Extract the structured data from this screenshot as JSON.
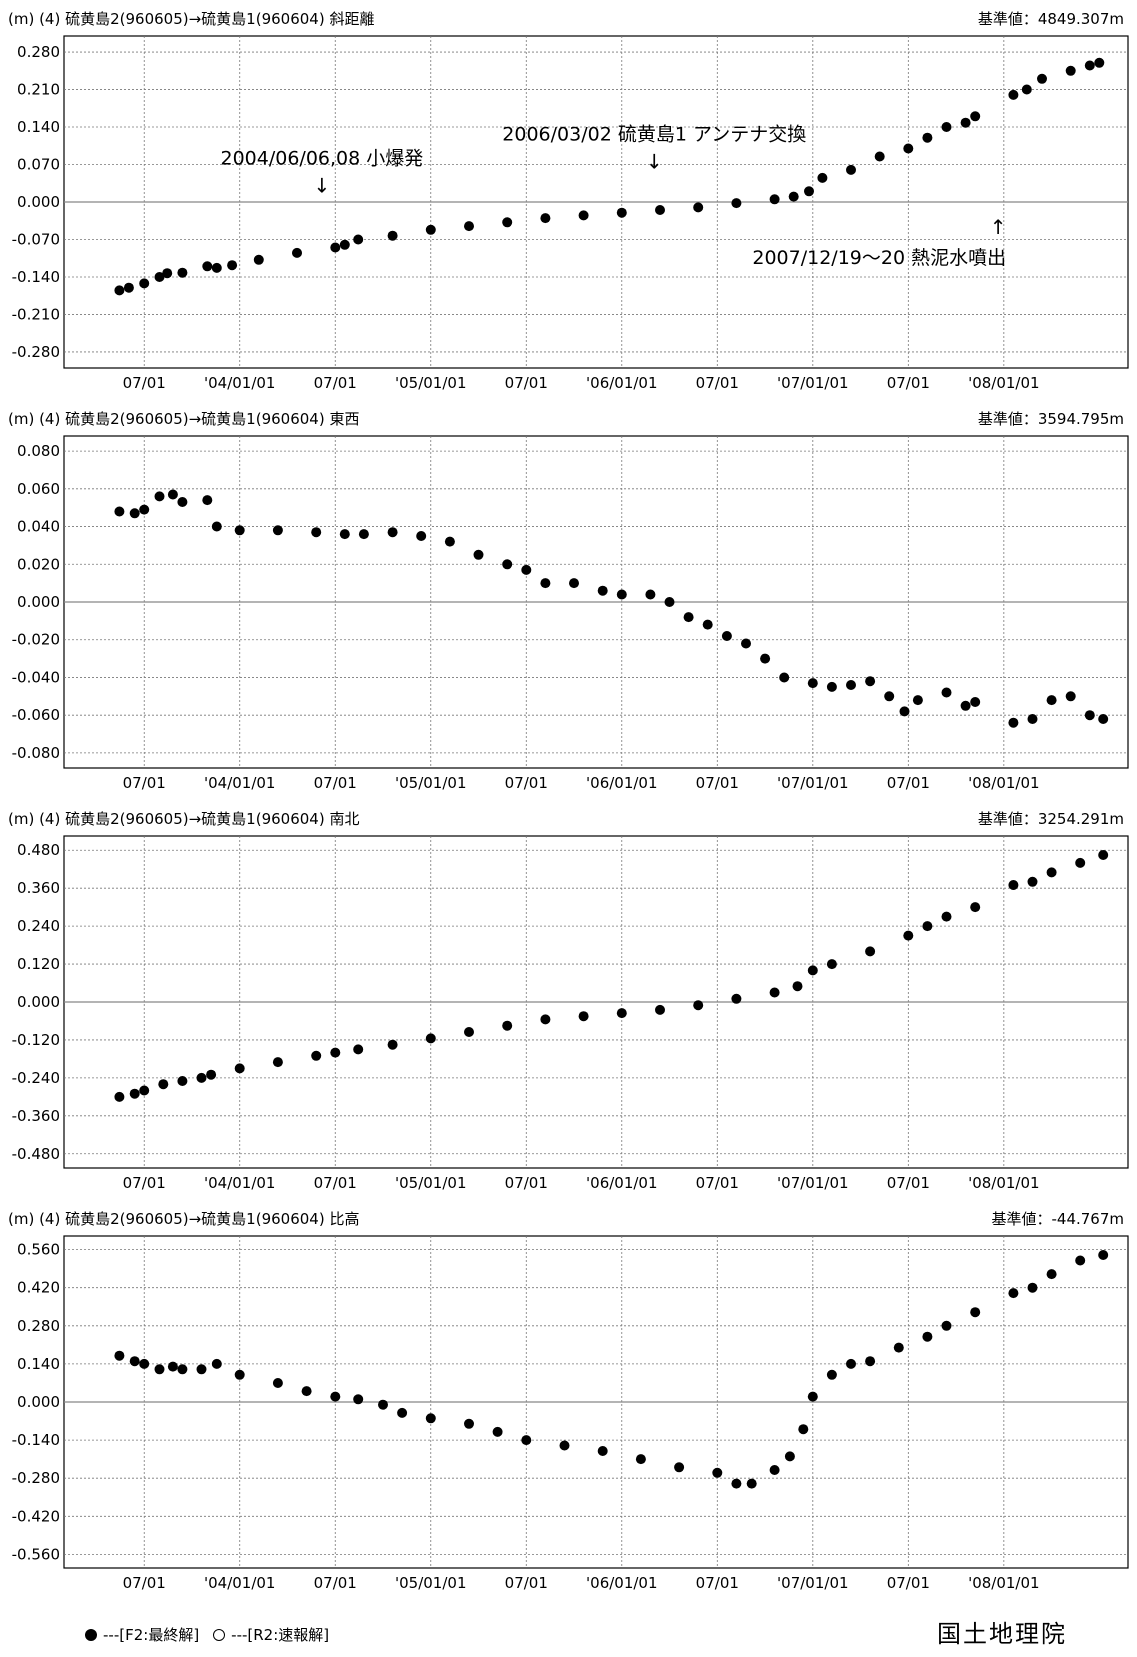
{
  "chart_data": [
    {
      "type": "scatter",
      "header_left": "(m)  (4) 硫黄島2(960605)→硫黄島1(960604) 斜距離",
      "header_right": "基準値：4849.307m",
      "yticks": [
        "0.280",
        "0.210",
        "0.140",
        "0.070",
        "0.000",
        "-0.070",
        "-0.140",
        "-0.210",
        "-0.280"
      ],
      "ylim": [
        -0.31,
        0.31
      ],
      "xticks": [
        "07/01",
        "'04/01/01",
        "07/01",
        "'05/01/01",
        "07/01",
        "'06/01/01",
        "07/01",
        "'07/01/01",
        "07/01",
        "'08/01/01"
      ],
      "series": [
        {
          "points": [
            [
              2003.37,
              -0.165
            ],
            [
              2003.42,
              -0.16
            ],
            [
              2003.5,
              -0.152
            ],
            [
              2003.58,
              -0.14
            ],
            [
              2003.62,
              -0.133
            ],
            [
              2003.7,
              -0.132
            ],
            [
              2003.83,
              -0.12
            ],
            [
              2003.88,
              -0.123
            ],
            [
              2003.96,
              -0.118
            ],
            [
              2004.1,
              -0.108
            ],
            [
              2004.3,
              -0.095
            ],
            [
              2004.5,
              -0.085
            ],
            [
              2004.55,
              -0.08
            ],
            [
              2004.62,
              -0.07
            ],
            [
              2004.8,
              -0.063
            ],
            [
              2005.0,
              -0.052
            ],
            [
              2005.2,
              -0.045
            ],
            [
              2005.4,
              -0.038
            ],
            [
              2005.6,
              -0.03
            ],
            [
              2005.8,
              -0.025
            ],
            [
              2006.0,
              -0.02
            ],
            [
              2006.2,
              -0.015
            ],
            [
              2006.4,
              -0.01
            ],
            [
              2006.6,
              -0.002
            ],
            [
              2006.8,
              0.005
            ],
            [
              2006.9,
              0.01
            ],
            [
              2006.98,
              0.02
            ],
            [
              2007.05,
              0.045
            ],
            [
              2007.2,
              0.06
            ],
            [
              2007.35,
              0.085
            ],
            [
              2007.5,
              0.1
            ],
            [
              2007.6,
              0.12
            ],
            [
              2007.7,
              0.14
            ],
            [
              2007.8,
              0.148
            ],
            [
              2007.85,
              0.16
            ],
            [
              2008.05,
              0.2
            ],
            [
              2008.12,
              0.21
            ],
            [
              2008.2,
              0.23
            ],
            [
              2008.35,
              0.245
            ],
            [
              2008.45,
              0.255
            ],
            [
              2008.5,
              0.26
            ]
          ]
        }
      ],
      "annotations": [
        {
          "text": "2004/06/06,08  小爆発",
          "arrow": "↓",
          "x": 2004.43,
          "y": 0.07
        },
        {
          "text": "2006/03/02  硫黄島1  アンテナ交換",
          "arrow": "↓",
          "x": 2006.17,
          "y": 0.115
        },
        {
          "text": "2007/12/19～20  熱泥水噴出",
          "arrow": "↑",
          "x": 2007.97,
          "y": -0.06
        }
      ]
    },
    {
      "type": "scatter",
      "header_left": "(m)  (4) 硫黄島2(960605)→硫黄島1(960604) 東西",
      "header_right": "基準値：3594.795m",
      "yticks": [
        "0.080",
        "0.060",
        "0.040",
        "0.020",
        "0.000",
        "-0.020",
        "-0.040",
        "-0.060",
        "-0.080"
      ],
      "ylim": [
        -0.088,
        0.088
      ],
      "xticks": [
        "07/01",
        "'04/01/01",
        "07/01",
        "'05/01/01",
        "07/01",
        "'06/01/01",
        "07/01",
        "'07/01/01",
        "07/01",
        "'08/01/01"
      ],
      "series": [
        {
          "points": [
            [
              2003.37,
              0.048
            ],
            [
              2003.45,
              0.047
            ],
            [
              2003.5,
              0.049
            ],
            [
              2003.58,
              0.056
            ],
            [
              2003.65,
              0.057
            ],
            [
              2003.7,
              0.053
            ],
            [
              2003.83,
              0.054
            ],
            [
              2003.88,
              0.04
            ],
            [
              2004.0,
              0.038
            ],
            [
              2004.2,
              0.038
            ],
            [
              2004.4,
              0.037
            ],
            [
              2004.55,
              0.036
            ],
            [
              2004.65,
              0.036
            ],
            [
              2004.8,
              0.037
            ],
            [
              2004.95,
              0.035
            ],
            [
              2005.1,
              0.032
            ],
            [
              2005.25,
              0.025
            ],
            [
              2005.4,
              0.02
            ],
            [
              2005.5,
              0.017
            ],
            [
              2005.6,
              0.01
            ],
            [
              2005.75,
              0.01
            ],
            [
              2005.9,
              0.006
            ],
            [
              2006.0,
              0.004
            ],
            [
              2006.15,
              0.004
            ],
            [
              2006.25,
              0.0
            ],
            [
              2006.35,
              -0.008
            ],
            [
              2006.45,
              -0.012
            ],
            [
              2006.55,
              -0.018
            ],
            [
              2006.65,
              -0.022
            ],
            [
              2006.75,
              -0.03
            ],
            [
              2006.85,
              -0.04
            ],
            [
              2007.0,
              -0.043
            ],
            [
              2007.1,
              -0.045
            ],
            [
              2007.2,
              -0.044
            ],
            [
              2007.3,
              -0.042
            ],
            [
              2007.4,
              -0.05
            ],
            [
              2007.48,
              -0.058
            ],
            [
              2007.55,
              -0.052
            ],
            [
              2007.7,
              -0.048
            ],
            [
              2007.8,
              -0.055
            ],
            [
              2007.85,
              -0.053
            ],
            [
              2008.05,
              -0.064
            ],
            [
              2008.15,
              -0.062
            ],
            [
              2008.25,
              -0.052
            ],
            [
              2008.35,
              -0.05
            ],
            [
              2008.45,
              -0.06
            ],
            [
              2008.52,
              -0.062
            ]
          ]
        }
      ]
    },
    {
      "type": "scatter",
      "header_left": "(m)  (4) 硫黄島2(960605)→硫黄島1(960604) 南北",
      "header_right": "基準値：3254.291m",
      "yticks": [
        "0.480",
        "0.360",
        "0.240",
        "0.120",
        "0.000",
        "-0.120",
        "-0.240",
        "-0.360",
        "-0.480"
      ],
      "ylim": [
        -0.525,
        0.525
      ],
      "xticks": [
        "07/01",
        "'04/01/01",
        "07/01",
        "'05/01/01",
        "07/01",
        "'06/01/01",
        "07/01",
        "'07/01/01",
        "07/01",
        "'08/01/01"
      ],
      "series": [
        {
          "points": [
            [
              2003.37,
              -0.3
            ],
            [
              2003.45,
              -0.29
            ],
            [
              2003.5,
              -0.28
            ],
            [
              2003.6,
              -0.26
            ],
            [
              2003.7,
              -0.25
            ],
            [
              2003.8,
              -0.24
            ],
            [
              2003.85,
              -0.23
            ],
            [
              2004.0,
              -0.21
            ],
            [
              2004.2,
              -0.19
            ],
            [
              2004.4,
              -0.17
            ],
            [
              2004.5,
              -0.16
            ],
            [
              2004.62,
              -0.15
            ],
            [
              2004.8,
              -0.135
            ],
            [
              2005.0,
              -0.115
            ],
            [
              2005.2,
              -0.095
            ],
            [
              2005.4,
              -0.075
            ],
            [
              2005.6,
              -0.055
            ],
            [
              2005.8,
              -0.045
            ],
            [
              2006.0,
              -0.035
            ],
            [
              2006.2,
              -0.025
            ],
            [
              2006.4,
              -0.01
            ],
            [
              2006.6,
              0.01
            ],
            [
              2006.8,
              0.03
            ],
            [
              2006.92,
              0.05
            ],
            [
              2007.0,
              0.1
            ],
            [
              2007.1,
              0.12
            ],
            [
              2007.3,
              0.16
            ],
            [
              2007.5,
              0.21
            ],
            [
              2007.6,
              0.24
            ],
            [
              2007.7,
              0.27
            ],
            [
              2007.85,
              0.3
            ],
            [
              2008.05,
              0.37
            ],
            [
              2008.15,
              0.38
            ],
            [
              2008.25,
              0.41
            ],
            [
              2008.4,
              0.44
            ],
            [
              2008.52,
              0.465
            ]
          ]
        }
      ]
    },
    {
      "type": "scatter",
      "header_left": "(m)  (4) 硫黄島2(960605)→硫黄島1(960604) 比高",
      "header_right": "基準値：-44.767m",
      "yticks": [
        "0.560",
        "0.420",
        "0.280",
        "0.140",
        "0.000",
        "-0.140",
        "-0.280",
        "-0.420",
        "-0.560"
      ],
      "ylim": [
        -0.61,
        0.61
      ],
      "xticks": [
        "07/01",
        "'04/01/01",
        "07/01",
        "'05/01/01",
        "07/01",
        "'06/01/01",
        "07/01",
        "'07/01/01",
        "07/01",
        "'08/01/01"
      ],
      "series": [
        {
          "points": [
            [
              2003.37,
              0.17
            ],
            [
              2003.45,
              0.15
            ],
            [
              2003.5,
              0.14
            ],
            [
              2003.58,
              0.12
            ],
            [
              2003.65,
              0.13
            ],
            [
              2003.7,
              0.12
            ],
            [
              2003.8,
              0.12
            ],
            [
              2003.88,
              0.14
            ],
            [
              2004.0,
              0.1
            ],
            [
              2004.2,
              0.07
            ],
            [
              2004.35,
              0.04
            ],
            [
              2004.5,
              0.02
            ],
            [
              2004.62,
              0.01
            ],
            [
              2004.75,
              -0.01
            ],
            [
              2004.85,
              -0.04
            ],
            [
              2005.0,
              -0.06
            ],
            [
              2005.2,
              -0.08
            ],
            [
              2005.35,
              -0.11
            ],
            [
              2005.5,
              -0.14
            ],
            [
              2005.7,
              -0.16
            ],
            [
              2005.9,
              -0.18
            ],
            [
              2006.1,
              -0.21
            ],
            [
              2006.3,
              -0.24
            ],
            [
              2006.5,
              -0.26
            ],
            [
              2006.6,
              -0.3
            ],
            [
              2006.68,
              -0.3
            ],
            [
              2006.8,
              -0.25
            ],
            [
              2006.88,
              -0.2
            ],
            [
              2006.95,
              -0.1
            ],
            [
              2007.0,
              0.02
            ],
            [
              2007.1,
              0.1
            ],
            [
              2007.2,
              0.14
            ],
            [
              2007.3,
              0.15
            ],
            [
              2007.45,
              0.2
            ],
            [
              2007.6,
              0.24
            ],
            [
              2007.7,
              0.28
            ],
            [
              2007.85,
              0.33
            ],
            [
              2008.05,
              0.4
            ],
            [
              2008.15,
              0.42
            ],
            [
              2008.25,
              0.47
            ],
            [
              2008.4,
              0.52
            ],
            [
              2008.52,
              0.54
            ]
          ]
        }
      ]
    }
  ],
  "legend": {
    "final_label": "---[F2:最終解]",
    "rapid_label": "---[R2:速報解]"
  },
  "agency": "国土地理院"
}
